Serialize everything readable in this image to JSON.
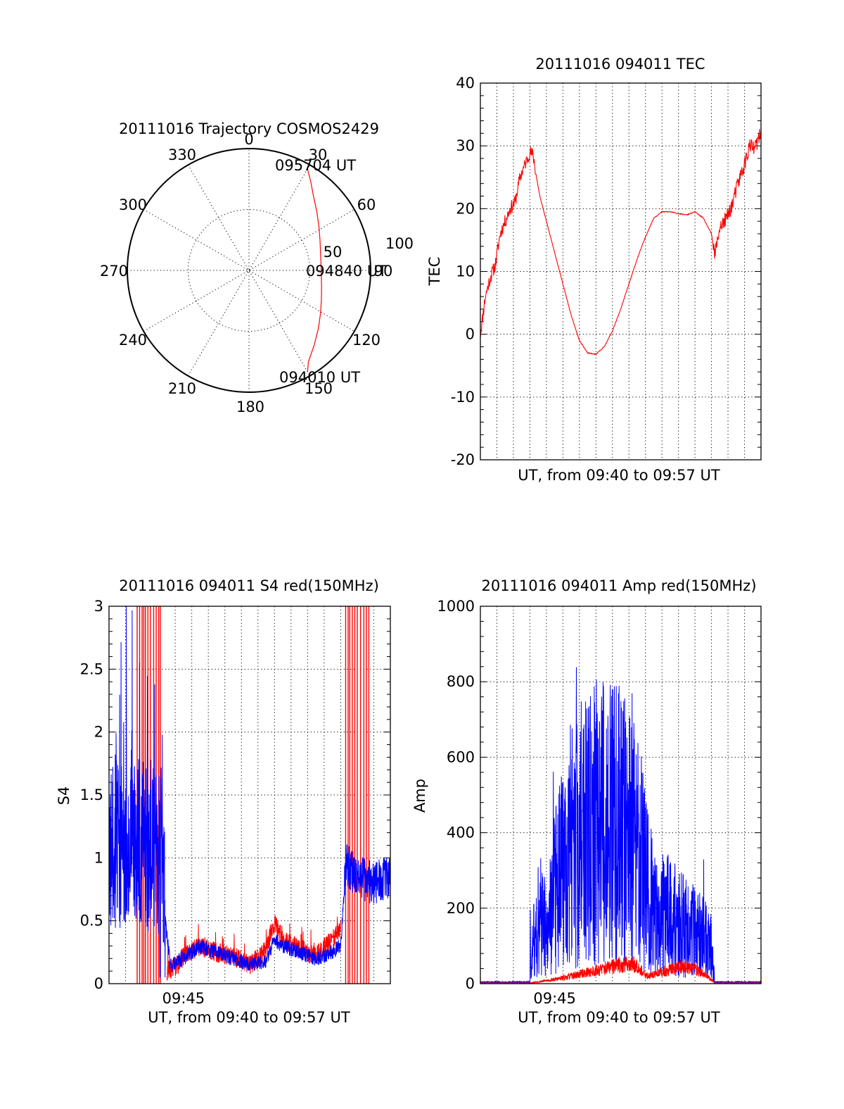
{
  "colors": {
    "red": "#ff0000",
    "blue": "#0000ff",
    "black": "#000000"
  },
  "chart_data": [
    {
      "id": "trajectory",
      "type": "polar",
      "title": "20111016 Trajectory COSMOS2429",
      "angle_labels": [
        "0",
        "30",
        "60",
        "90",
        "120",
        "150",
        "180",
        "210",
        "240",
        "270",
        "300",
        "330"
      ],
      "radial_labels": [
        "50",
        "100"
      ],
      "rlim": [
        0,
        100
      ],
      "grid": true,
      "annotations": [
        "095704 UT",
        "094840 UT",
        "094010 UT"
      ],
      "track": {
        "color": "#ff0000",
        "az": [
          30,
          35,
          41,
          49,
          58,
          67,
          76,
          85,
          94,
          103,
          112,
          121,
          130,
          139,
          147,
          150
        ],
        "r": [
          96.2,
          88.6,
          80.8,
          73.8,
          67.8,
          63.4,
          60.6,
          59.4,
          59.6,
          61.2,
          64.2,
          68.6,
          74.4,
          81.6,
          89.6,
          96.3
        ]
      }
    },
    {
      "id": "tec",
      "type": "line",
      "title": "20111016 094011 TEC",
      "xlabel": "UT, from 09:40 to 09:57 UT",
      "ylabel": "TEC",
      "ylim": [
        -20,
        40
      ],
      "yticks": [
        "-20",
        "-10",
        "0",
        "10",
        "20",
        "30",
        "40"
      ],
      "xticks": [],
      "grid": true,
      "series": [
        {
          "color": "#ff0000",
          "x": [
            0,
            0.3,
            0.6,
            0.9,
            1.2,
            1.5,
            1.8,
            2.1,
            2.4,
            2.7,
            3.0,
            3.2,
            3.4,
            3.6,
            4.0,
            4.5,
            5.0,
            5.5,
            6.0,
            6.5,
            7.0,
            7.5,
            8.0,
            8.5,
            9.0,
            9.5,
            10.0,
            10.5,
            11.0,
            11.5,
            12.0,
            12.5,
            13.0,
            13.5,
            14.0,
            14.2,
            14.3,
            14.5,
            14.8,
            15.0,
            15.3,
            15.6,
            16.0,
            16.3,
            16.6,
            17.0
          ],
          "y": [
            0,
            6,
            9,
            11,
            16,
            18,
            20,
            21,
            25,
            27,
            29,
            28.5,
            25,
            22,
            18,
            13,
            8,
            3,
            -1,
            -3,
            -3.2,
            -2,
            0.5,
            4,
            8,
            12,
            15.5,
            18.5,
            19.5,
            19.5,
            19.2,
            19.0,
            19.5,
            18.5,
            16,
            12.5,
            14,
            17,
            18,
            19,
            21,
            24,
            27,
            30,
            29.5,
            32
          ]
        }
      ]
    },
    {
      "id": "s4",
      "type": "line",
      "title": "20111016 094011 S4 red(150MHz)",
      "xlabel": "UT, from 09:40 to 09:57 UT",
      "ylabel": "S4",
      "ylim": [
        0,
        3
      ],
      "yticks": [
        "0",
        "0.5",
        "1",
        "1.5",
        "2",
        "2.5",
        "3"
      ],
      "xticks": [
        {
          "label": "09:45",
          "x": 4.5
        }
      ],
      "grid": true,
      "series": [
        {
          "color": "#0000ff",
          "x": [
            0,
            0.8,
            1.6,
            2.4,
            3.2,
            3.4,
            3.7,
            4.5,
            5.5,
            6.5,
            7.5,
            8.5,
            9.5,
            10.0,
            10.5,
            11.5,
            12.5,
            13.5,
            14.0,
            14.3,
            15.0,
            16.0,
            17.0
          ],
          "y": [
            1.1,
            1.15,
            1.2,
            1.1,
            1.05,
            0.5,
            0.15,
            0.2,
            0.3,
            0.25,
            0.2,
            0.15,
            0.18,
            0.35,
            0.3,
            0.25,
            0.2,
            0.25,
            0.3,
            0.95,
            0.85,
            0.8,
            0.85
          ]
        },
        {
          "color": "#ff0000",
          "x": [
            3.5,
            4.0,
            4.5,
            5.5,
            6.5,
            7.5,
            8.5,
            9.0,
            9.5,
            10.0,
            10.5,
            11.5,
            12.5,
            13.5,
            14.0
          ],
          "y": [
            0.1,
            0.12,
            0.22,
            0.3,
            0.25,
            0.22,
            0.15,
            0.2,
            0.3,
            0.48,
            0.35,
            0.28,
            0.22,
            0.35,
            0.45
          ]
        }
      ]
    },
    {
      "id": "amp",
      "type": "line",
      "title": "20111016 094011 Amp red(150MHz)",
      "xlabel": "UT, from 09:40 to 09:57 UT",
      "ylabel": "Amp",
      "ylim": [
        0,
        1000
      ],
      "yticks": [
        "0",
        "200",
        "400",
        "600",
        "800",
        "1000"
      ],
      "xticks": [
        {
          "label": "09:45",
          "x": 4.5
        }
      ],
      "grid": true,
      "series": [
        {
          "color": "#0000ff",
          "x": [
            0,
            3.0,
            3.3,
            3.6,
            4.0,
            4.5,
            5.0,
            5.5,
            6.0,
            6.5,
            7.0,
            7.5,
            8.5,
            9.0,
            9.5,
            10.0,
            10.5,
            11.0,
            11.5,
            12.0,
            13.0,
            14.0,
            14.2,
            15.0,
            17.0
          ],
          "y": [
            4,
            4,
            150,
            200,
            140,
            250,
            300,
            380,
            400,
            420,
            430,
            420,
            420,
            380,
            380,
            260,
            200,
            180,
            180,
            160,
            140,
            100,
            4,
            4,
            4
          ]
        },
        {
          "color": "#ff0000",
          "x": [
            0,
            3.0,
            3.5,
            4.0,
            5.0,
            6.0,
            7.0,
            8.0,
            8.5,
            9.0,
            9.5,
            10.0,
            11.0,
            12.0,
            13.0,
            14.0,
            14.2,
            17.0
          ],
          "y": [
            2,
            2,
            5,
            8,
            15,
            25,
            35,
            45,
            50,
            52,
            50,
            20,
            30,
            45,
            40,
            10,
            2,
            2
          ]
        }
      ]
    }
  ]
}
